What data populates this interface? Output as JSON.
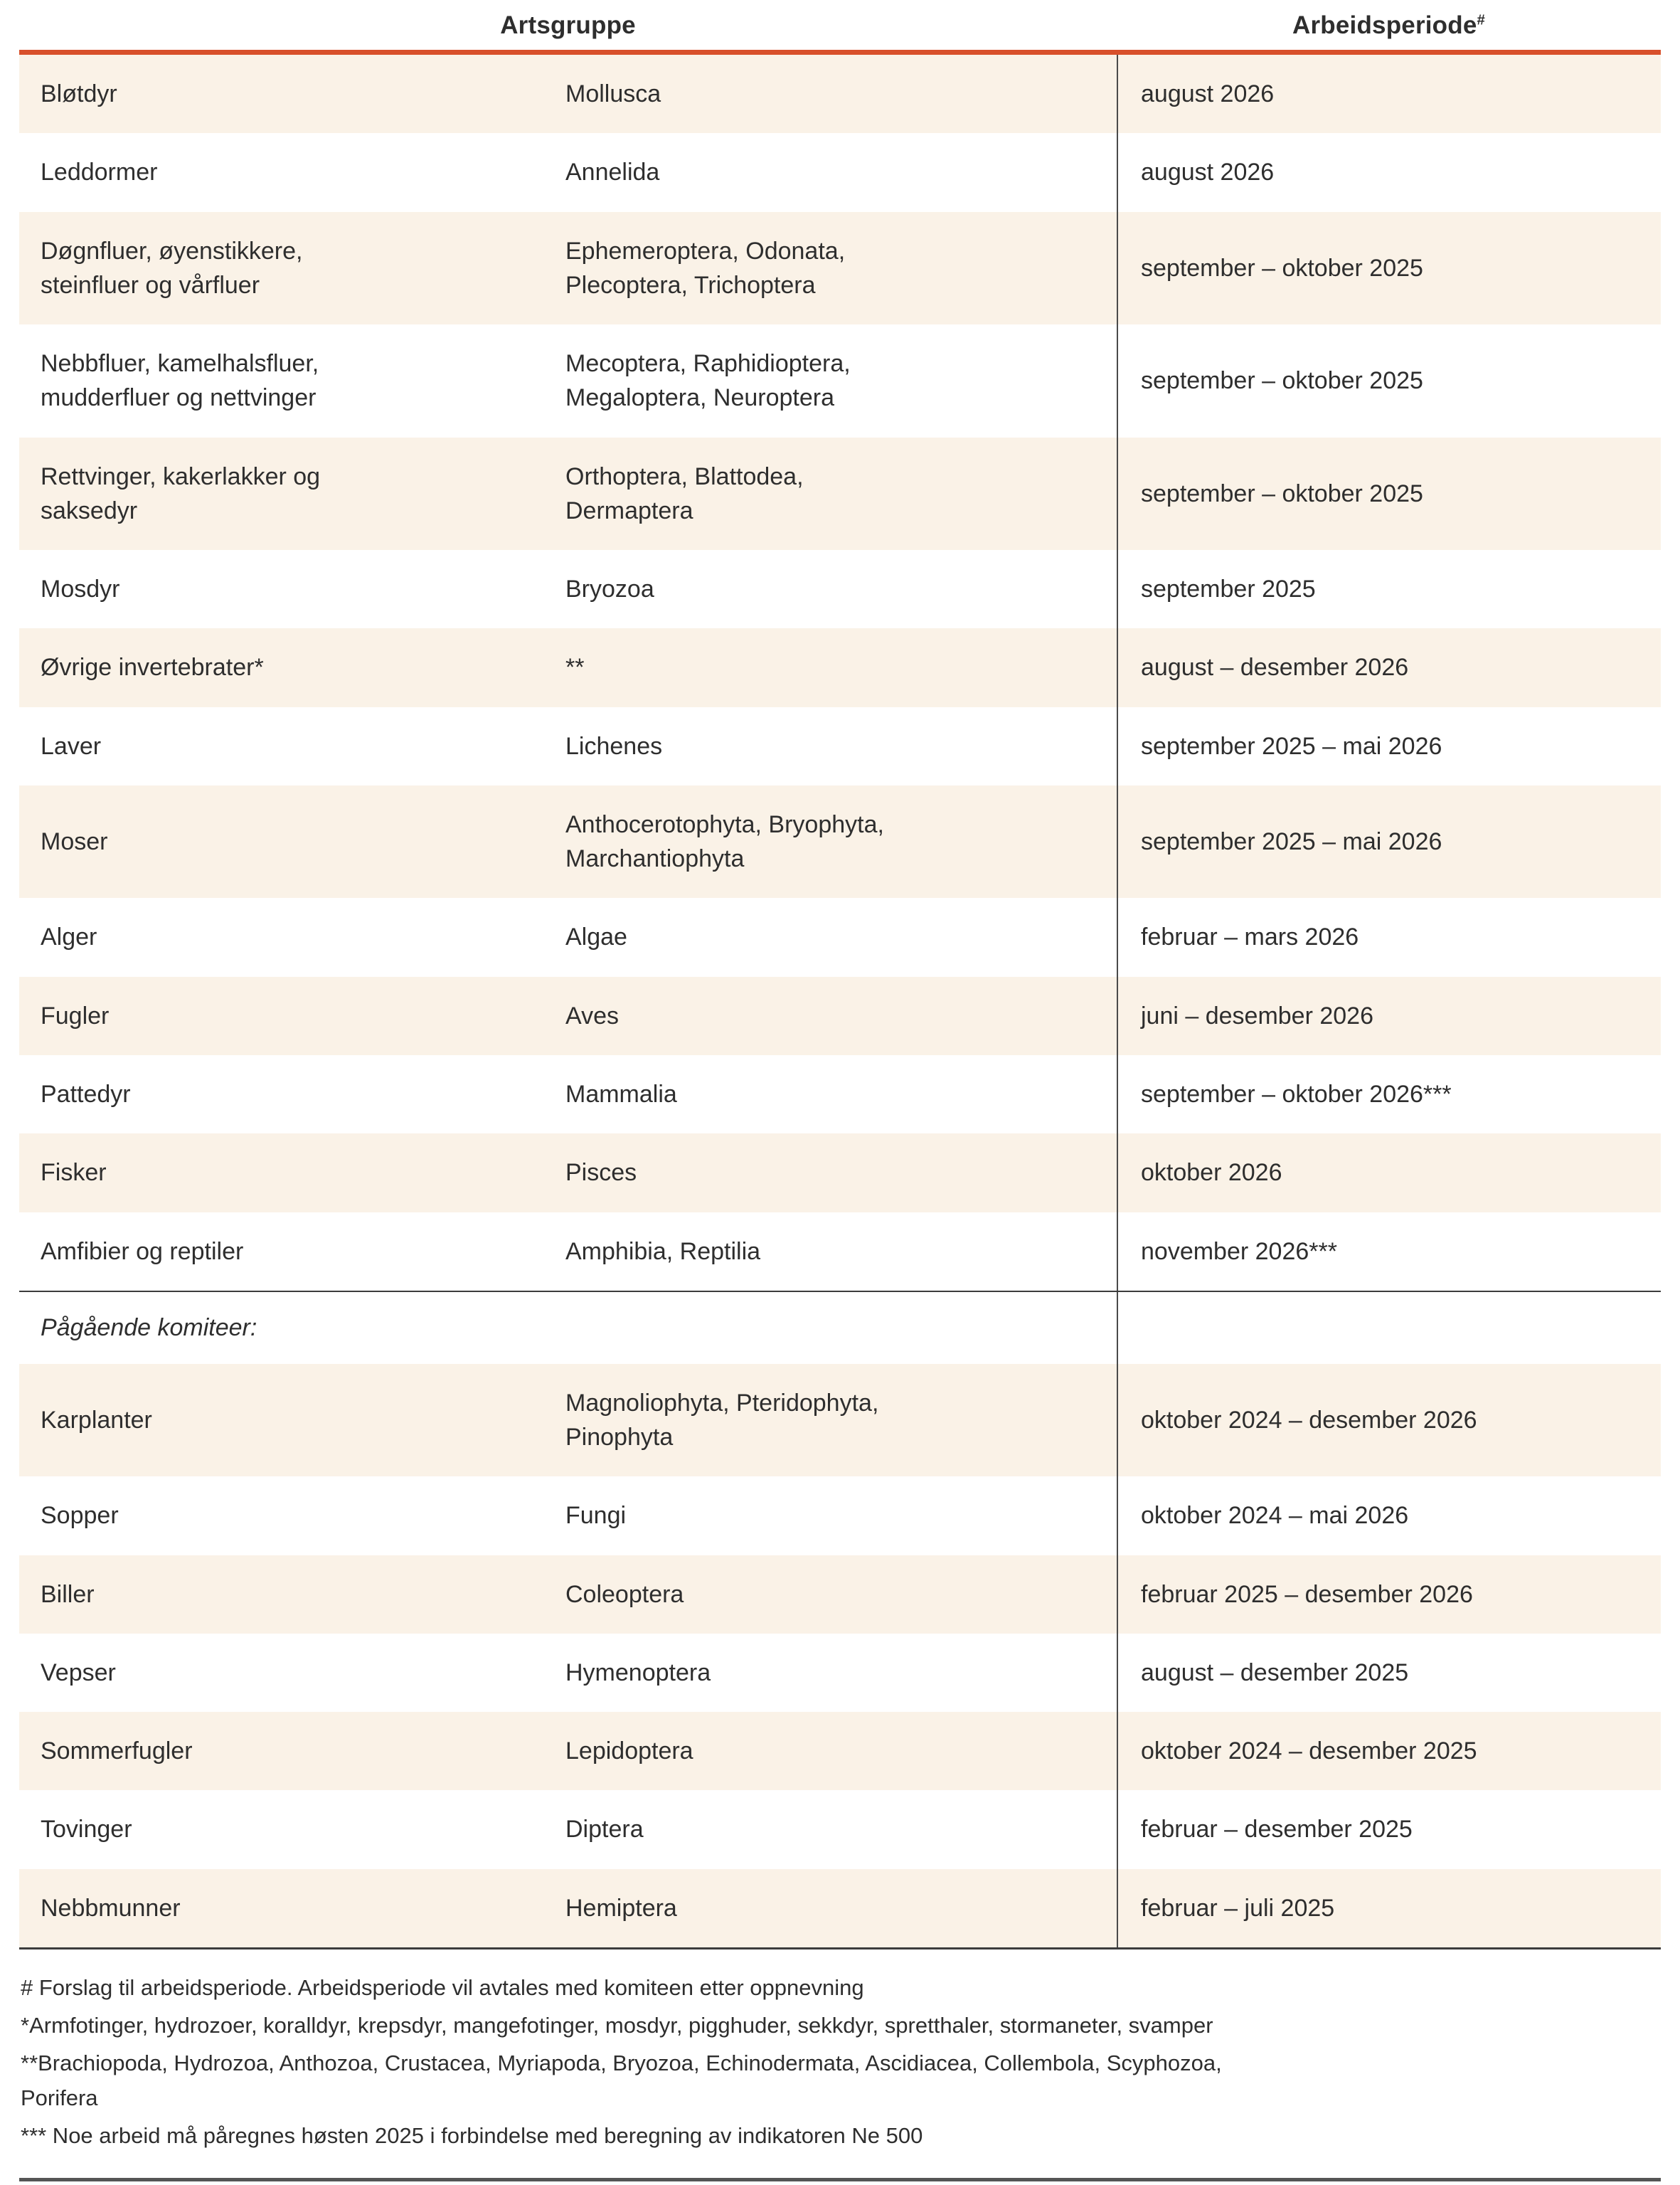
{
  "header": {
    "group1": "Artsgruppe",
    "group2": "Arbeidsperiode",
    "group2_note": "#"
  },
  "section_label": "Pågående komiteer:",
  "rows_main": [
    {
      "name": "Bløtdyr",
      "latin": "Mollusca",
      "period": "august 2026"
    },
    {
      "name": "Leddormer",
      "latin": "Annelida",
      "period": "august 2026"
    },
    {
      "name": "Døgnfluer, øyenstikkere,\nsteinfluer og vårfluer",
      "latin": "Ephemeroptera, Odonata,\nPlecoptera, Trichoptera",
      "period": "september – oktober 2025"
    },
    {
      "name": "Nebbfluer, kamelhalsfluer,\nmudderfluer og nettvinger",
      "latin": "Mecoptera, Raphidioptera,\nMegaloptera, Neuroptera",
      "period": "september – oktober 2025"
    },
    {
      "name": "Rettvinger, kakerlakker og\nsaksedyr",
      "latin": "Orthoptera, Blattodea,\nDermaptera",
      "period": "september – oktober 2025"
    },
    {
      "name": "Mosdyr",
      "latin": "Bryozoa",
      "period": "september 2025"
    },
    {
      "name": "Øvrige invertebrater*",
      "latin": "**",
      "period": "august – desember 2026"
    },
    {
      "name": "Laver",
      "latin": "Lichenes",
      "period": "september 2025 – mai 2026"
    },
    {
      "name": "Moser",
      "latin": "Anthocerotophyta, Bryophyta,\nMarchantiophyta",
      "period": "september 2025 – mai 2026"
    },
    {
      "name": "Alger",
      "latin": "Algae",
      "period": "februar – mars 2026"
    },
    {
      "name": "Fugler",
      "latin": "Aves",
      "period": "juni – desember 2026"
    },
    {
      "name": "Pattedyr",
      "latin": "Mammalia",
      "period": "september – oktober 2026***"
    },
    {
      "name": "Fisker",
      "latin": "Pisces",
      "period": "oktober 2026"
    },
    {
      "name": "Amfibier og reptiler",
      "latin": "Amphibia, Reptilia",
      "period": "november 2026***"
    }
  ],
  "rows_committees": [
    {
      "name": "Karplanter",
      "latin": "Magnoliophyta, Pteridophyta,\nPinophyta",
      "period": "oktober 2024 – desember 2026"
    },
    {
      "name": "Sopper",
      "latin": "Fungi",
      "period": "oktober 2024 – mai 2026"
    },
    {
      "name": "Biller",
      "latin": "Coleoptera",
      "period": "februar 2025 – desember 2026"
    },
    {
      "name": "Vepser",
      "latin": "Hymenoptera",
      "period": "august  – desember 2025"
    },
    {
      "name": "Sommerfugler",
      "latin": "Lepidoptera",
      "period": "oktober 2024 – desember 2025"
    },
    {
      "name": "Tovinger",
      "latin": "Diptera",
      "period": "februar – desember 2025"
    },
    {
      "name": "Nebbmunner",
      "latin": "Hemiptera",
      "period": "februar – juli 2025"
    }
  ],
  "footnotes": [
    "# Forslag til arbeidsperiode. Arbeidsperiode vil avtales med komiteen etter oppnevning",
    "*Armfotinger, hydrozoer, koralldyr, krepsdyr, mangefotinger, mosdyr, pigghuder, sekkdyr, spretthaler, stormaneter, svamper",
    "**Brachiopoda, Hydrozoa, Anthozoa, Crustacea, Myriapoda, Bryozoa, Echinodermata, Ascidiacea, Collembola, Scyphozoa,\nPorifera",
    "*** Noe arbeid må påregnes høsten 2025 i forbindelse med beregning av indikatoren Ne 500"
  ],
  "colors": {
    "accent_line": "#d8502b",
    "row_alt_bg": "#faf2e7",
    "text": "#2e2e2e",
    "rule_dark": "#3c3c3c",
    "column_divider": "#4a4a4a"
  }
}
